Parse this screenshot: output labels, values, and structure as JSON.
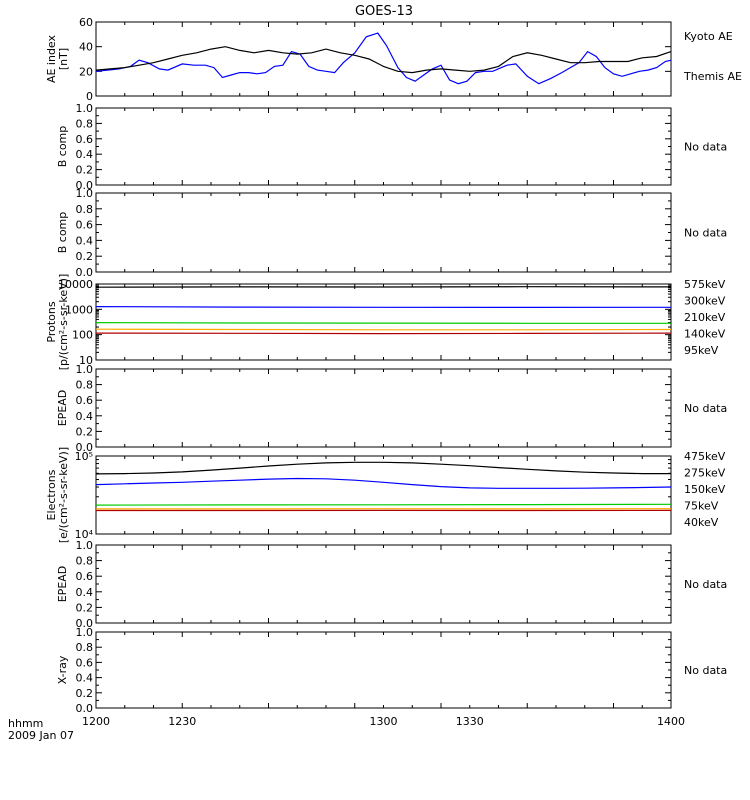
{
  "title": "GOES-13",
  "footer": {
    "line1": "hhmm",
    "line2": "2009 Jan 07"
  },
  "x_axis": {
    "min": 1200,
    "max": 1400,
    "tick_labels": [
      "1200",
      "1230",
      "1300",
      "1330",
      "1400"
    ]
  },
  "colors": {
    "black": "#000000",
    "blue": "#0000ff",
    "green": "#00cc00",
    "orange": "#ffaa00",
    "red": "#b00000"
  },
  "chart_data": [
    {
      "type": "line",
      "ylabel": [
        "AE index",
        "[nT]"
      ],
      "ylim": [
        0,
        60
      ],
      "ticks": [
        "0",
        "20",
        "40",
        "60"
      ],
      "tick_values": [
        0,
        20,
        40,
        60
      ],
      "legend": [
        "Kyoto AE",
        "Themis AE"
      ],
      "series": [
        {
          "name": "Kyoto AE",
          "color": "#0000ff",
          "x": [
            1200,
            1204,
            1208,
            1212,
            1215,
            1218,
            1222,
            1225,
            1230,
            1234,
            1238,
            1241,
            1244,
            1247,
            1250,
            1253,
            1256,
            1259,
            1262,
            1265,
            1268,
            1271,
            1274,
            1277,
            1280,
            1283,
            1286,
            1290,
            1294,
            1298,
            1301,
            1305,
            1308,
            1311,
            1314,
            1317,
            1320,
            1323,
            1326,
            1329,
            1332,
            1335,
            1338,
            1341,
            1343,
            1346,
            1350,
            1354,
            1358,
            1362,
            1365,
            1368,
            1371,
            1374,
            1377,
            1380,
            1383,
            1386,
            1389,
            1392,
            1395,
            1398,
            1400
          ],
          "y": [
            20,
            21,
            22,
            24,
            29,
            27,
            22,
            21,
            26,
            25,
            25,
            23,
            15,
            17,
            19,
            19,
            18,
            19,
            24,
            25,
            36,
            34,
            24,
            21,
            20,
            19,
            27,
            35,
            48,
            51,
            41,
            23,
            15,
            12,
            17,
            22,
            25,
            13,
            10,
            12,
            19,
            20,
            20,
            23,
            25,
            26,
            16,
            10,
            14,
            19,
            23,
            27,
            36,
            32,
            23,
            18,
            16,
            18,
            20,
            21,
            23,
            28,
            29
          ]
        },
        {
          "name": "Themis AE",
          "color": "#000000",
          "x": [
            1200,
            1205,
            1210,
            1215,
            1220,
            1225,
            1230,
            1235,
            1240,
            1245,
            1250,
            1255,
            1260,
            1265,
            1270,
            1275,
            1280,
            1285,
            1290,
            1295,
            1300,
            1305,
            1310,
            1315,
            1320,
            1325,
            1330,
            1335,
            1340,
            1345,
            1350,
            1355,
            1360,
            1365,
            1370,
            1375,
            1380,
            1385,
            1390,
            1395,
            1400
          ],
          "y": [
            21,
            22,
            23,
            25,
            27,
            30,
            33,
            35,
            38,
            40,
            37,
            35,
            37,
            35,
            34,
            35,
            38,
            35,
            33,
            30,
            24,
            20,
            19,
            21,
            22,
            21,
            20,
            21,
            24,
            32,
            35,
            33,
            30,
            27,
            27,
            28,
            28,
            28,
            31,
            32,
            36
          ]
        }
      ]
    },
    {
      "type": "line",
      "ylabel": [
        "B comp"
      ],
      "ylim": [
        0,
        1
      ],
      "ticks": [
        "0.0",
        "0.2",
        "0.4",
        "0.6",
        "0.8",
        "1.0"
      ],
      "tick_values": [
        0,
        0.2,
        0.4,
        0.6,
        0.8,
        1.0
      ],
      "minor_ticks": [
        0.1,
        0.3,
        0.5,
        0.7,
        0.9
      ],
      "message": "No data"
    },
    {
      "type": "line",
      "ylabel": [
        "B comp"
      ],
      "ylim": [
        0,
        1
      ],
      "ticks": [
        "0.0",
        "0.2",
        "0.4",
        "0.6",
        "0.8",
        "1.0"
      ],
      "tick_values": [
        0,
        0.2,
        0.4,
        0.6,
        0.8,
        1.0
      ],
      "minor_ticks": [
        0.1,
        0.3,
        0.5,
        0.7,
        0.9
      ],
      "message": "No data"
    },
    {
      "type": "line",
      "ylabel": [
        "Protons",
        "[p/(cm²-s-sr-keV)]"
      ],
      "log": true,
      "ylim": [
        10,
        10000
      ],
      "ticks": [
        "10",
        "100",
        "1000",
        "10000"
      ],
      "tick_values": [
        10,
        100,
        1000,
        10000
      ],
      "legend": [
        "575keV",
        "300keV",
        "210keV",
        "140keV",
        "95keV"
      ],
      "legend_colors": [
        "#b00000",
        "#ffaa00",
        "#00cc00",
        "#0000ff",
        "#000000"
      ],
      "series": [
        {
          "name": "95keV",
          "color": "#000000",
          "x": [
            1200,
            1250,
            1300,
            1350,
            1400
          ],
          "y": [
            7500,
            7700,
            7600,
            7800,
            7700
          ]
        },
        {
          "name": "140keV",
          "color": "#0000ff",
          "x": [
            1200,
            1250,
            1300,
            1350,
            1400
          ],
          "y": [
            1280,
            1230,
            1200,
            1190,
            1200
          ]
        },
        {
          "name": "210keV",
          "color": "#00cc00",
          "x": [
            1200,
            1250,
            1300,
            1350,
            1400
          ],
          "y": [
            300,
            290,
            285,
            280,
            280
          ]
        },
        {
          "name": "300keV",
          "color": "#ffaa00",
          "x": [
            1200,
            1250,
            1300,
            1350,
            1400
          ],
          "y": [
            165,
            160,
            155,
            155,
            160
          ]
        },
        {
          "name": "575keV",
          "color": "#b00000",
          "x": [
            1200,
            1250,
            1300,
            1350,
            1400
          ],
          "y": [
            115,
            113,
            110,
            112,
            115
          ]
        }
      ]
    },
    {
      "type": "line",
      "ylabel": [
        "EPEAD"
      ],
      "ylim": [
        0,
        1
      ],
      "ticks": [
        "0.0",
        "0.2",
        "0.4",
        "0.6",
        "0.8",
        "1.0"
      ],
      "tick_values": [
        0,
        0.2,
        0.4,
        0.6,
        0.8,
        1.0
      ],
      "minor_ticks": [
        0.1,
        0.3,
        0.5,
        0.7,
        0.9
      ],
      "message": "No data"
    },
    {
      "type": "line",
      "ylabel": [
        "Electrons",
        "[e/(cm²-s-sr-keV)]"
      ],
      "log": true,
      "ylim": [
        10000,
        100000
      ],
      "ticks": [
        "10⁴",
        "10⁵"
      ],
      "tick_values": [
        10000,
        100000
      ],
      "legend": [
        "475keV",
        "275keV",
        "150keV",
        "75keV",
        "40keV"
      ],
      "legend_colors": [
        "#b00000",
        "#ffaa00",
        "#00cc00",
        "#0000ff",
        "#000000"
      ],
      "series": [
        {
          "name": "40keV",
          "color": "#000000",
          "x": [
            1200,
            1210,
            1220,
            1230,
            1240,
            1250,
            1260,
            1270,
            1280,
            1290,
            1300,
            1310,
            1320,
            1330,
            1340,
            1350,
            1360,
            1370,
            1380,
            1390,
            1400
          ],
          "y": [
            59000,
            59500,
            60500,
            62500,
            66000,
            70000,
            74500,
            78500,
            81500,
            83000,
            83000,
            81500,
            78500,
            75000,
            71000,
            67500,
            64500,
            62000,
            60500,
            59500,
            59500
          ]
        },
        {
          "name": "75keV",
          "color": "#0000ff",
          "x": [
            1200,
            1210,
            1220,
            1230,
            1240,
            1250,
            1260,
            1270,
            1280,
            1290,
            1300,
            1310,
            1320,
            1330,
            1340,
            1350,
            1360,
            1370,
            1380,
            1390,
            1400
          ],
          "y": [
            43000,
            44000,
            45000,
            46000,
            47500,
            49000,
            50500,
            51500,
            51000,
            49000,
            46000,
            43000,
            40500,
            39000,
            38500,
            38500,
            38500,
            38700,
            39000,
            39500,
            40000
          ]
        },
        {
          "name": "150keV",
          "color": "#00cc00",
          "x": [
            1200,
            1250,
            1300,
            1350,
            1400
          ],
          "y": [
            23500,
            23600,
            23700,
            23800,
            24000
          ]
        },
        {
          "name": "275keV",
          "color": "#ffaa00",
          "x": [
            1200,
            1250,
            1300,
            1350,
            1400
          ],
          "y": [
            21000,
            21000,
            21100,
            21000,
            21100
          ]
        },
        {
          "name": "475keV",
          "color": "#b00000",
          "x": [
            1200,
            1250,
            1300,
            1350,
            1400
          ],
          "y": [
            20000,
            20000,
            20100,
            20000,
            20100
          ]
        }
      ]
    },
    {
      "type": "line",
      "ylabel": [
        "EPEAD"
      ],
      "ylim": [
        0,
        1
      ],
      "ticks": [
        "0.0",
        "0.2",
        "0.4",
        "0.6",
        "0.8",
        "1.0"
      ],
      "tick_values": [
        0,
        0.2,
        0.4,
        0.6,
        0.8,
        1.0
      ],
      "minor_ticks": [
        0.1,
        0.3,
        0.5,
        0.7,
        0.9
      ],
      "message": "No data"
    },
    {
      "type": "line",
      "ylabel": [
        "X-ray"
      ],
      "ylim": [
        0,
        1
      ],
      "ticks": [
        "0.0",
        "0.2",
        "0.4",
        "0.6",
        "0.8",
        "1.0"
      ],
      "tick_values": [
        0,
        0.2,
        0.4,
        0.6,
        0.8,
        1.0
      ],
      "minor_ticks": [
        0.1,
        0.3,
        0.5,
        0.7,
        0.9
      ],
      "message": "No data"
    }
  ]
}
